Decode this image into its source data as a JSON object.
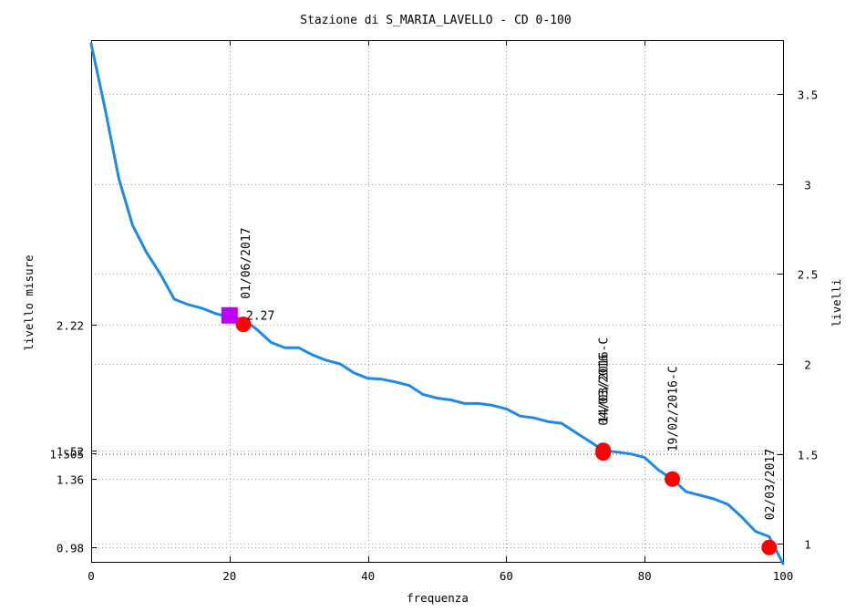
{
  "chart_data": {
    "type": "line",
    "title": "Stazione di S_MARIA_LAVELLO - CD 0-100",
    "xlabel": "frequenza",
    "ylabel_left": "livello misure",
    "ylabel_right": "livelli",
    "xlim": [
      0,
      100
    ],
    "ylim": [
      0.9,
      3.8
    ],
    "grid": true,
    "x_ticks": [
      0,
      20,
      40,
      60,
      80,
      100
    ],
    "x_tick_labels": [
      "0",
      "20",
      "40",
      "60",
      "80",
      "100"
    ],
    "right_ticks": [
      1,
      1.5,
      2,
      2.5,
      3,
      3.5
    ],
    "right_tick_labels": [
      "1",
      "1.5",
      "2",
      "2.5",
      "3",
      "3.5"
    ],
    "left_ticks": [
      2.22,
      1.52,
      1.505,
      1.36,
      0.98
    ],
    "left_tick_labels": [
      "2.22",
      "1.52",
      "1.505",
      "1.36",
      "0.98"
    ],
    "line_color": "#1f8ae6",
    "marker_color": "#ff0000",
    "square_color": "#bb00ff",
    "series": [
      {
        "x": [
          0,
          2,
          4,
          6,
          8,
          10,
          12,
          14,
          16,
          18,
          20,
          22,
          24,
          26,
          28,
          30,
          32,
          34,
          36,
          38,
          40,
          42,
          44,
          46,
          48,
          50,
          52,
          54,
          56,
          58,
          60,
          62,
          64,
          66,
          68,
          70,
          72,
          74,
          76,
          78,
          80,
          82,
          84,
          86,
          88,
          90,
          92,
          94,
          96,
          98,
          100
        ],
        "y": [
          3.78,
          3.42,
          3.03,
          2.77,
          2.62,
          2.5,
          2.36,
          2.33,
          2.31,
          2.28,
          2.26,
          2.25,
          2.19,
          2.12,
          2.09,
          2.09,
          2.05,
          2.02,
          2.0,
          1.95,
          1.92,
          1.915,
          1.9,
          1.88,
          1.83,
          1.81,
          1.8,
          1.78,
          1.78,
          1.77,
          1.75,
          1.71,
          1.7,
          1.68,
          1.67,
          1.62,
          1.57,
          1.52,
          1.51,
          1.5,
          1.48,
          1.41,
          1.36,
          1.29,
          1.27,
          1.25,
          1.22,
          1.15,
          1.07,
          1.04,
          0.89
        ]
      }
    ],
    "markers": [
      {
        "x": 22,
        "y": 2.22,
        "label": "2.27",
        "orient": "horizontal"
      },
      {
        "x": 74,
        "y": 1.52,
        "label": "14/03/2016-C",
        "orient": "vertical"
      },
      {
        "x": 74,
        "y": 1.505,
        "label": "04/03/2016",
        "orient": "vertical"
      },
      {
        "x": 84,
        "y": 1.36,
        "label": "19/02/2016-C",
        "orient": "vertical"
      },
      {
        "x": 98,
        "y": 0.98,
        "label": "02/03/2017",
        "orient": "vertical"
      }
    ],
    "square_marker": {
      "x": 20,
      "y": 2.27,
      "label": "01/06/2017"
    }
  }
}
